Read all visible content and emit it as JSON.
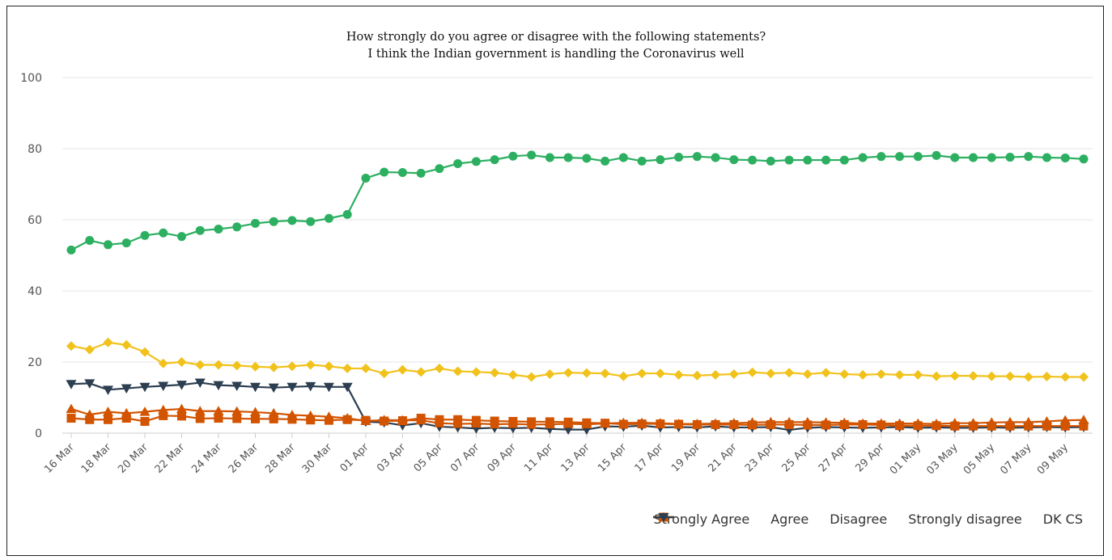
{
  "chart_data": {
    "type": "line",
    "title": "How strongly do you agree or disagree with the following statements?",
    "subtitle": "I think the Indian government is handling the Coronavirus well",
    "ylim": [
      0,
      100
    ],
    "yticks": [
      0,
      20,
      40,
      60,
      80,
      100
    ],
    "grid": "horizontal",
    "legend_position": "bottom-right",
    "x": [
      "16 Mar",
      "17 Mar",
      "18 Mar",
      "19 Mar",
      "20 Mar",
      "21 Mar",
      "22 Mar",
      "23 Mar",
      "24 Mar",
      "25 Mar",
      "26 Mar",
      "27 Mar",
      "28 Mar",
      "29 Mar",
      "30 Mar",
      "31 Mar",
      "01 Apr",
      "02 Apr",
      "03 Apr",
      "04 Apr",
      "05 Apr",
      "06 Apr",
      "07 Apr",
      "08 Apr",
      "09 Apr",
      "10 Apr",
      "11 Apr",
      "12 Apr",
      "13 Apr",
      "14 Apr",
      "15 Apr",
      "16 Apr",
      "17 Apr",
      "18 Apr",
      "19 Apr",
      "20 Apr",
      "21 Apr",
      "22 Apr",
      "23 Apr",
      "24 Apr",
      "25 Apr",
      "26 Apr",
      "27 Apr",
      "28 Apr",
      "29 Apr",
      "30 Apr",
      "01 May",
      "02 May",
      "03 May",
      "04 May",
      "05 May",
      "06 May",
      "07 May",
      "08 May",
      "09 May",
      "10 May"
    ],
    "xtick_labels": [
      "16 Mar",
      "18 Mar",
      "20 Mar",
      "22 Mar",
      "24 Mar",
      "26 Mar",
      "28 Mar",
      "30 Mar",
      "01 Apr",
      "03 Apr",
      "05 Apr",
      "07 Apr",
      "09 Apr",
      "11 Apr",
      "13 Apr",
      "15 Apr",
      "17 Apr",
      "19 Apr",
      "21 Apr",
      "23 Apr",
      "25 Apr",
      "27 Apr",
      "29 Apr",
      "01 May",
      "03 May",
      "05 May",
      "07 May",
      "09 May"
    ],
    "series": [
      {
        "name": "Strongly Agree",
        "color": "#2daf61",
        "marker": "circle",
        "values": [
          51.5,
          54.2,
          53,
          53.5,
          55.6,
          56.3,
          55.3,
          57,
          57.4,
          58,
          59,
          59.5,
          59.8,
          59.5,
          60.4,
          61.5,
          71.7,
          73.4,
          73.3,
          73.1,
          74.4,
          75.8,
          76.4,
          76.9,
          77.9,
          78.2,
          77.5,
          77.5,
          77.3,
          76.5,
          77.5,
          76.5,
          76.9,
          77.6,
          77.8,
          77.5,
          76.9,
          76.8,
          76.5,
          76.8,
          76.8,
          76.8,
          76.8,
          77.5,
          77.8,
          77.8,
          77.8,
          78.1,
          77.5,
          77.5,
          77.5,
          77.6,
          77.8,
          77.5,
          77.4,
          77.1
        ]
      },
      {
        "name": "Agree",
        "color": "#f1c21b",
        "marker": "diamond",
        "values": [
          24.5,
          23.5,
          25.5,
          24.8,
          22.8,
          19.6,
          20,
          19.2,
          19.2,
          19,
          18.7,
          18.5,
          18.8,
          19.2,
          18.8,
          18.2,
          18.2,
          16.8,
          17.8,
          17.2,
          18.2,
          17.4,
          17.2,
          17,
          16.4,
          15.8,
          16.6,
          17,
          16.9,
          16.8,
          16,
          16.8,
          16.8,
          16.4,
          16.2,
          16.4,
          16.6,
          17.1,
          16.8,
          17,
          16.6,
          17,
          16.6,
          16.4,
          16.6,
          16.4,
          16.4,
          16,
          16.1,
          16.1,
          16,
          16,
          15.8,
          15.9,
          15.8,
          15.8
        ]
      },
      {
        "name": "Disagree",
        "color": "#d35400",
        "marker": "square",
        "values": [
          4.2,
          3.8,
          3.8,
          4.2,
          3.3,
          4.9,
          4.8,
          4.1,
          4.2,
          4.1,
          4,
          4,
          3.9,
          3.7,
          3.6,
          3.8,
          3.6,
          3.4,
          3.5,
          4.2,
          3.8,
          3.8,
          3.6,
          3.4,
          3.3,
          3.2,
          3.2,
          3.1,
          2.9,
          2.8,
          2.5,
          2.6,
          2.6,
          2.5,
          2.4,
          2.4,
          2.4,
          2.3,
          2.4,
          2.4,
          2.3,
          2.3,
          2.4,
          2.4,
          2.3,
          2.1,
          2.1,
          2.1,
          2,
          2,
          2,
          2,
          2,
          2,
          2,
          2
        ]
      },
      {
        "name": "Strongly disagree",
        "color": "#d35400",
        "marker": "triangle",
        "values": [
          6.8,
          5.2,
          6,
          5.6,
          6,
          6.5,
          6.8,
          6.2,
          6.2,
          6.1,
          5.9,
          5.6,
          5.1,
          4.9,
          4.6,
          4.2,
          3.4,
          3.7,
          3.6,
          3.6,
          2.8,
          2.6,
          2.7,
          2.5,
          2.6,
          2.4,
          2.5,
          2.6,
          2.5,
          2.7,
          2.9,
          2.9,
          2.8,
          2.6,
          2.6,
          2.7,
          2.8,
          3,
          3.1,
          3.1,
          3.1,
          3,
          2.9,
          2.7,
          2.7,
          2.7,
          2.7,
          2.6,
          2.8,
          2.8,
          3,
          3.1,
          3.1,
          3.3,
          3.6,
          3.7
        ]
      },
      {
        "name": "DK CS",
        "color": "#2c3e50",
        "marker": "triangle-down",
        "values": [
          13.8,
          14,
          12.2,
          12.6,
          13,
          13.3,
          13.6,
          14.2,
          13.5,
          13.3,
          13,
          12.8,
          13,
          13.2,
          13,
          13,
          3.2,
          3,
          2.2,
          2.8,
          1.8,
          1.6,
          1.3,
          1.5,
          1.4,
          1.5,
          1.2,
          1,
          1,
          1.9,
          1.8,
          2.1,
          1.6,
          1.7,
          1.6,
          1.9,
          1.6,
          1.6,
          1.7,
          0.9,
          1.5,
          1.7,
          1.6,
          1.5,
          1.6,
          1.7,
          1.5,
          1.6,
          1.5,
          1.5,
          1.6,
          1.5,
          1.6,
          1.7,
          1.6,
          1.7
        ]
      }
    ]
  }
}
